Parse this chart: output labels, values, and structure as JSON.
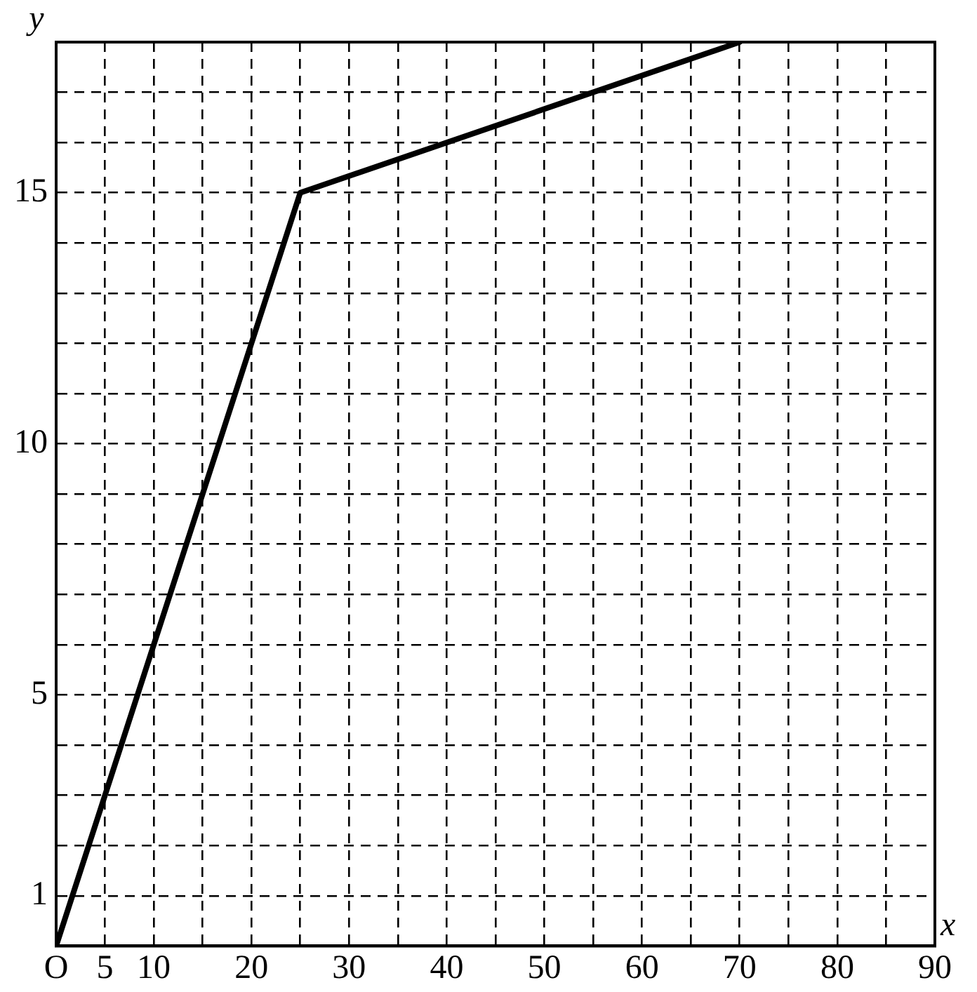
{
  "chart_data": {
    "type": "line",
    "xlabel": "x",
    "ylabel": "y",
    "series": [
      {
        "color": "#000000",
        "x": [
          0,
          25,
          70
        ],
        "values": [
          0,
          15,
          18
        ]
      }
    ],
    "xlim": [
      0,
      90
    ],
    "ylim": [
      0,
      18
    ],
    "xticks": [
      {
        "value": 0,
        "label": "O"
      },
      5,
      10,
      {
        "value": 15,
        "label": null
      },
      20,
      {
        "value": 25,
        "label": null
      },
      30,
      {
        "value": 35,
        "label": null
      },
      40,
      {
        "value": 45,
        "label": null
      },
      50,
      {
        "value": 55,
        "label": null
      },
      60,
      {
        "value": 65,
        "label": null
      },
      70,
      {
        "value": 75,
        "label": null
      },
      80,
      {
        "value": 85,
        "label": null
      },
      90
    ],
    "yticks": [
      {
        "value": 0,
        "label": null
      },
      1,
      {
        "value": 2,
        "label": null
      },
      {
        "value": 3,
        "label": null
      },
      {
        "value": 4,
        "label": null
      },
      5,
      {
        "value": 6,
        "label": null
      },
      {
        "value": 7,
        "label": null
      },
      {
        "value": 8,
        "label": null
      },
      {
        "value": 9,
        "label": null
      },
      10,
      {
        "value": 11,
        "label": null
      },
      {
        "value": 12,
        "label": null
      },
      {
        "value": 13,
        "label": null
      },
      {
        "value": 14,
        "label": null
      },
      15,
      {
        "value": 16,
        "label": null
      },
      {
        "value": 17,
        "label": null
      },
      {
        "value": 18,
        "label": null
      }
    ],
    "grid": true,
    "legend": false,
    "marker": "none",
    "line_style": "solid"
  }
}
